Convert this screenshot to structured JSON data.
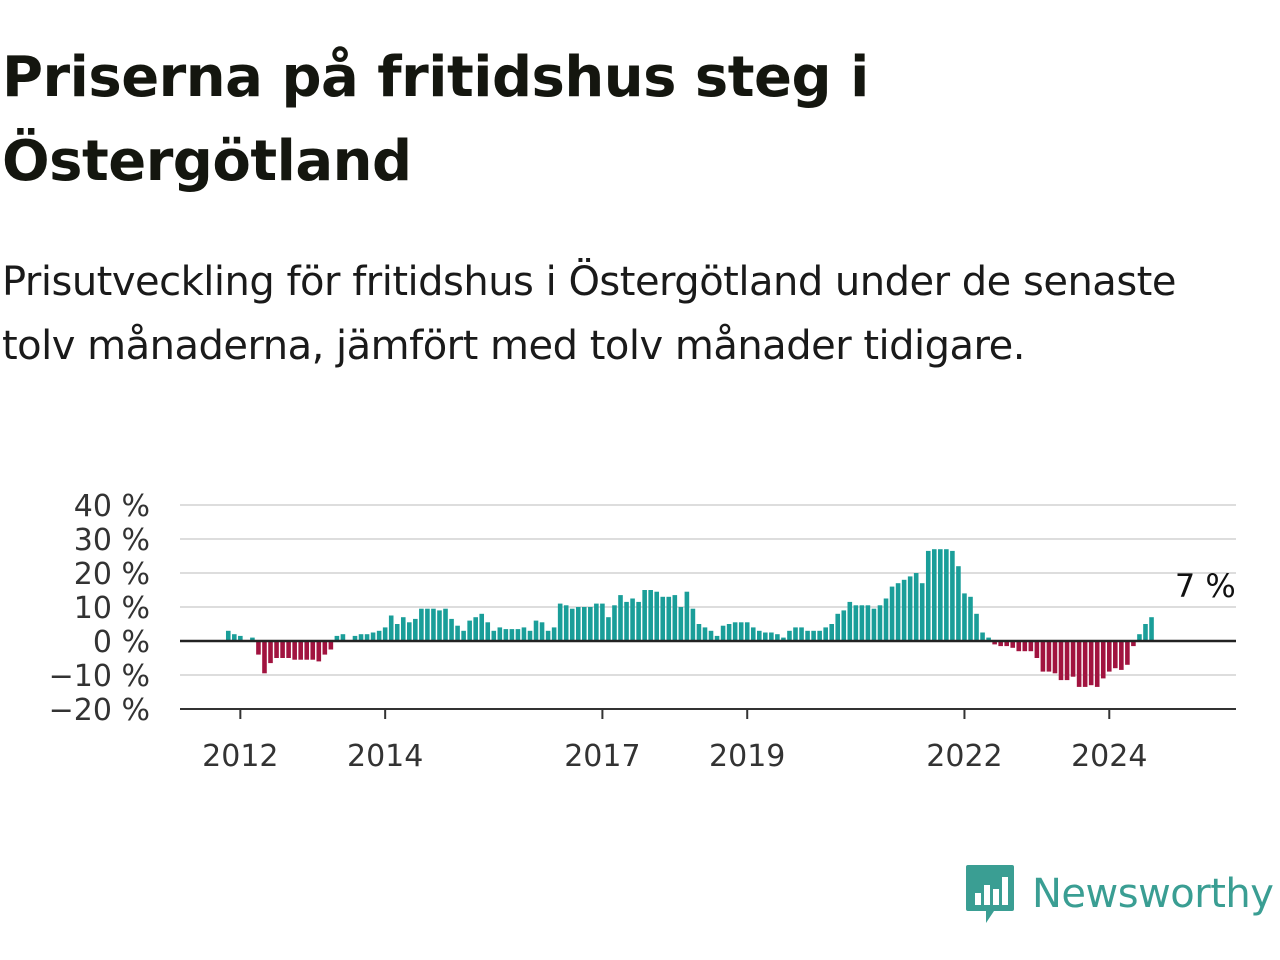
{
  "title": "Priserna på fritidshus steg i Östergötland",
  "subtitle": "Prisutveckling för fritidshus i Östergötland under de senaste tolv månaderna, jämfört med tolv månader tidigare.",
  "brand": {
    "name": "Newsworthy",
    "icon": "bar-chart-speech-bubble-icon",
    "color": "#3a9e93"
  },
  "chart_data": {
    "type": "bar",
    "title": "",
    "xlabel": "",
    "ylabel": "",
    "y_unit": "%",
    "ylim": [
      -20,
      40
    ],
    "yticks": [
      -20,
      -10,
      0,
      10,
      20,
      30,
      40
    ],
    "ytick_labels": [
      "−20 %",
      "−10 %",
      "0 %",
      "10 %",
      "20 %",
      "30 %",
      "40 %"
    ],
    "x_start": "2011-11",
    "xlim": [
      "2011-03",
      "2025-10"
    ],
    "xticks": [
      "2012-01",
      "2014-01",
      "2017-01",
      "2019-01",
      "2022-01",
      "2024-01"
    ],
    "xtick_labels": [
      "2012",
      "2014",
      "2017",
      "2019",
      "2022",
      "2024"
    ],
    "grid": true,
    "legend": false,
    "colors": {
      "positive": "#1a9e99",
      "negative": "#a1133f",
      "grid": "#dddddd",
      "axis": "#333333",
      "zero": "#222222"
    },
    "annotation": {
      "text": "7 %",
      "period": "2025-05"
    },
    "values": [
      3,
      2,
      1.5,
      0,
      1,
      -4,
      -9.5,
      -6.5,
      -5,
      -5,
      -5,
      -5.5,
      -5.5,
      -5.5,
      -5.5,
      -6,
      -4,
      -2.5,
      1.5,
      2,
      0,
      1.5,
      2,
      2,
      2.5,
      3,
      4,
      7.5,
      5,
      7,
      5.5,
      6.5,
      9.5,
      9.5,
      9.5,
      9,
      9.5,
      6.5,
      4.5,
      3,
      6,
      7,
      8,
      5.5,
      3,
      4,
      3.5,
      3.5,
      3.5,
      4,
      3,
      6,
      5.5,
      3,
      4,
      11,
      10.5,
      9.5,
      10,
      10,
      10,
      11,
      11,
      7,
      10.5,
      13.5,
      11.5,
      12.5,
      11.5,
      15,
      15,
      14.5,
      13,
      13,
      13.5,
      10,
      14.5,
      9.5,
      5,
      4,
      3,
      1.5,
      4.5,
      5,
      5.5,
      5.5,
      5.5,
      4,
      3,
      2.5,
      2.5,
      2,
      1,
      3,
      4,
      4,
      3,
      3,
      3,
      4,
      5,
      8,
      9,
      11.5,
      10.5,
      10.5,
      10.5,
      9.5,
      10.5,
      12.5,
      16,
      17,
      18,
      19,
      20,
      17,
      26.5,
      27,
      27,
      27,
      26.5,
      22,
      14,
      13,
      8,
      2.5,
      1,
      -1,
      -1.5,
      -1.5,
      -2,
      -3,
      -3,
      -3,
      -5,
      -9,
      -9,
      -9.5,
      -11.5,
      -11.5,
      -10.5,
      -13.5,
      -13.5,
      -13,
      -13.5,
      -11,
      -9,
      -8,
      -8.5,
      -7,
      -1.5,
      2,
      5,
      7
    ]
  }
}
